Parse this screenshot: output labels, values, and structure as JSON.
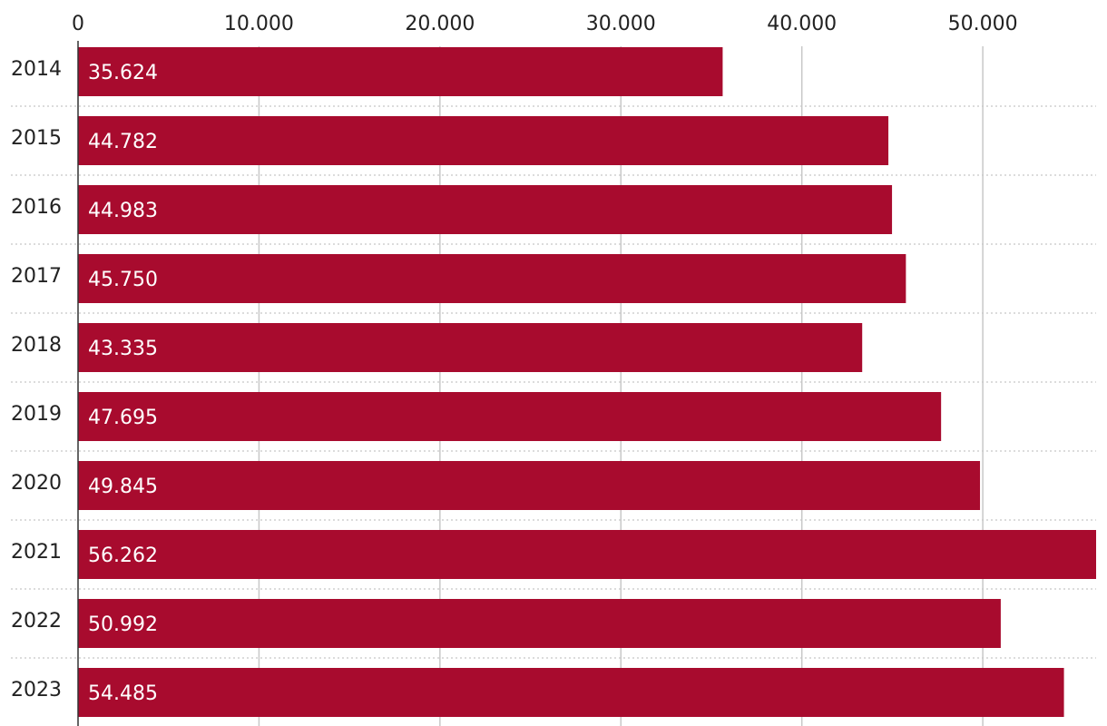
{
  "chart_data": {
    "type": "bar",
    "orientation": "horizontal",
    "title": "",
    "xlabel": "",
    "ylabel": "",
    "categories": [
      "2014",
      "2015",
      "2016",
      "2017",
      "2018",
      "2019",
      "2020",
      "2021",
      "2022",
      "2023"
    ],
    "values": [
      35624,
      44782,
      44983,
      45750,
      43335,
      47695,
      49845,
      56262,
      50992,
      54485
    ],
    "value_labels": [
      "35.624",
      "44.782",
      "44.983",
      "45.750",
      "43.335",
      "47.695",
      "49.845",
      "56.262",
      "50.992",
      "54.485"
    ],
    "xlim": [
      0,
      56262
    ],
    "ticks": [
      0,
      10000,
      20000,
      30000,
      40000,
      50000
    ],
    "tick_labels": [
      "0",
      "10.000",
      "20.000",
      "30.000",
      "40.000",
      "50.000"
    ],
    "axis_position": "top",
    "grid": true,
    "colors": {
      "bar": "#A80B2E",
      "grid": "#C8C8C8",
      "separator": "#C8C8C8",
      "axis": "#333333"
    }
  }
}
